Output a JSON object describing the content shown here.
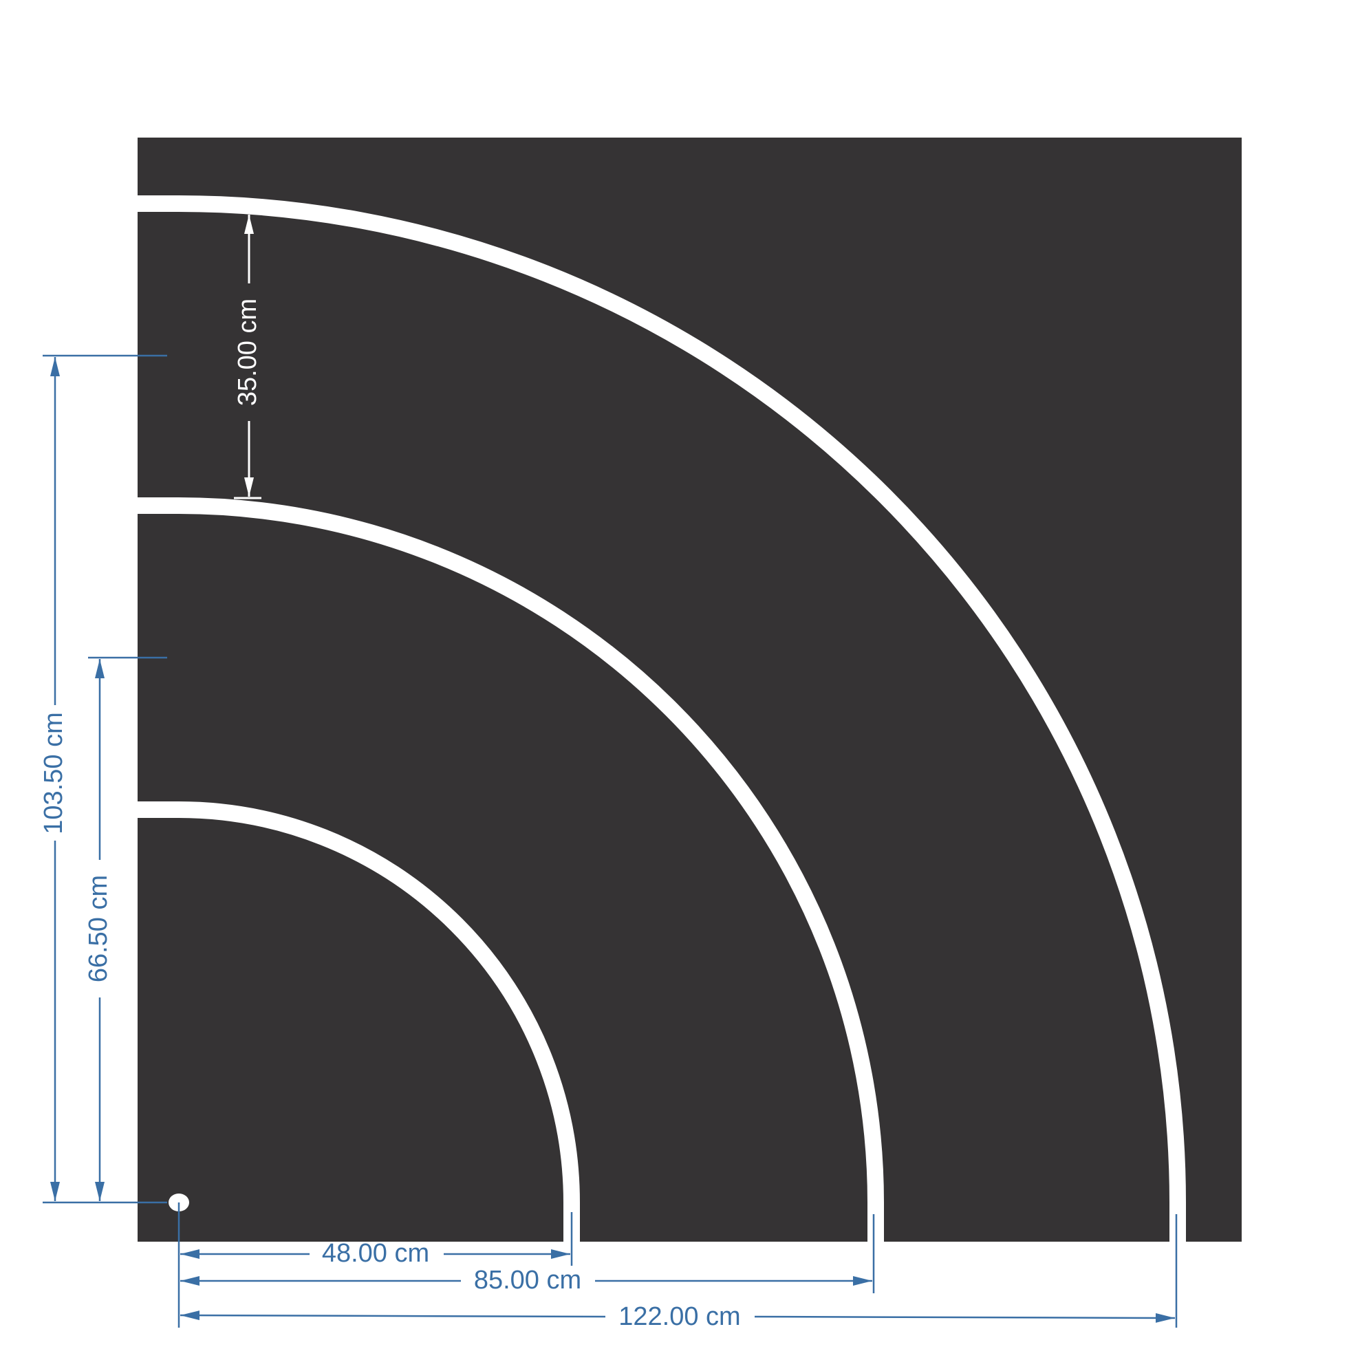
{
  "colors": {
    "road": "#353334",
    "marking": "#ffffff",
    "dimension": "#3a6fa5",
    "inner_dimension": "#ffffff"
  },
  "dimensions": {
    "horizontal": [
      {
        "id": "h48",
        "label": "48.00 cm",
        "value_cm": 48.0
      },
      {
        "id": "h85",
        "label": "85.00 cm",
        "value_cm": 85.0
      },
      {
        "id": "h122",
        "label": "122.00 cm",
        "value_cm": 122.0
      }
    ],
    "vertical": [
      {
        "id": "v103",
        "label": "103.50 cm",
        "value_cm": 103.5
      },
      {
        "id": "v66",
        "label": "66.50 cm",
        "value_cm": 66.5
      }
    ],
    "lane_width": {
      "label": "35.00 cm",
      "value_cm": 35.0
    }
  }
}
